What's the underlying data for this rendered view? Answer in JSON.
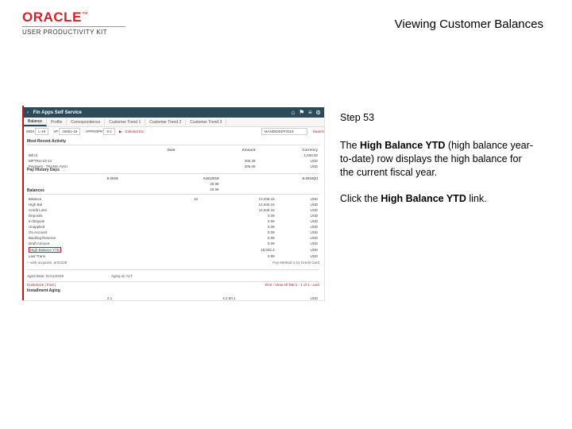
{
  "header": {
    "brand": "ORACLE",
    "brand_sub": "USER PRODUCTIVITY KIT",
    "title": "Viewing Customer Balances",
    "brand_color": "#d2232a"
  },
  "instruction": {
    "step_label": "Step 53",
    "body_pre": "The ",
    "body_bold1": "High Balance YTD",
    "body_mid": " (high balance year-to-date) row displays the high balance for the current fiscal year.",
    "action_pre": "Click the ",
    "action_bold": "High Balance YTD",
    "action_post": " link."
  },
  "screenshot": {
    "darkbar": {
      "back": "‹",
      "title": "Fin Apps Self Service",
      "crumbs": [
        "",
        "",
        "",
        ""
      ],
      "icons": [
        "⌂",
        "⚑",
        "≡",
        "⊚"
      ]
    },
    "tabs": [
      "Balance",
      "Profile",
      "Correspondence",
      "Customer Trend 1",
      "Customer Trend 2",
      "Customer Trend 3"
    ],
    "active_tab": 0,
    "filter": {
      "wbs_lbl": "WBS",
      "wbs_val": "L-19",
      "vp_lbl": "VP",
      "vp_val": "15851-19",
      "app_lbl": "APPROPR",
      "app_val": "5-1",
      "cust_val": "Colestol Inc.",
      "acct_val": "MANDIDEEP2019",
      "search": "Search"
    },
    "section1": {
      "title": "Most Recent Activity",
      "cols": [
        "",
        "Date",
        "Amount",
        "Currency"
      ],
      "rows": [
        [
          "Bill Id",
          "",
          "",
          "1,650.00"
        ],
        [
          "MPTRU-10-14",
          "",
          "206.39",
          "USD"
        ],
        [
          "Payment - TRANS-AVGI",
          "",
          "205.06",
          "USD"
        ]
      ]
    },
    "section2": {
      "title": "Pay History Days",
      "cols": [
        "",
        "5-2019",
        "AUG2019",
        "5-2019(2)"
      ],
      "rows": [
        [
          "",
          "",
          "29.98",
          ""
        ],
        [
          "",
          "",
          "28.98",
          ""
        ]
      ]
    },
    "section3": {
      "title": "Balances",
      "rows": [
        [
          "Balance",
          "12",
          "17,448.15",
          "USD"
        ],
        [
          "High Bal",
          "",
          "14,546.15",
          "USD"
        ],
        [
          "Credit Limit",
          "",
          "12,546.15",
          "USD"
        ],
        [
          "Deposits",
          "",
          "0.09",
          "USD"
        ],
        [
          "In Dispute",
          "",
          "0.09",
          "USD"
        ],
        [
          "Unapplied",
          "",
          "0.09",
          "USD"
        ],
        [
          "On Account",
          "",
          "0.09",
          "USD"
        ],
        [
          "Backlog Reserve",
          "",
          "0.09",
          "USD"
        ],
        [
          "Draft Amount",
          "",
          "0.09",
          "USD"
        ],
        [
          "High Balance YTD",
          "",
          "18,032.4",
          "USD"
        ],
        [
          "Last Trans",
          "",
          "0.99",
          "USD"
        ]
      ],
      "highlight_row": 9,
      "footer_left": "-- with acquisitn, ar02109",
      "footer_right": "Pay Method is by Credit Card"
    },
    "aging": {
      "left": "Aged Date: 01/11/2019",
      "right": "Aging Id: ALT"
    },
    "tablefoot": {
      "label": "Customize | Find | ",
      "nav": "First ‹ View All   Tab 1 - 1 of 1 › Last"
    },
    "lastsect": {
      "title": "Installment Aging",
      "row": [
        "",
        "2.1",
        "4.2.50.1",
        "USD"
      ]
    }
  }
}
